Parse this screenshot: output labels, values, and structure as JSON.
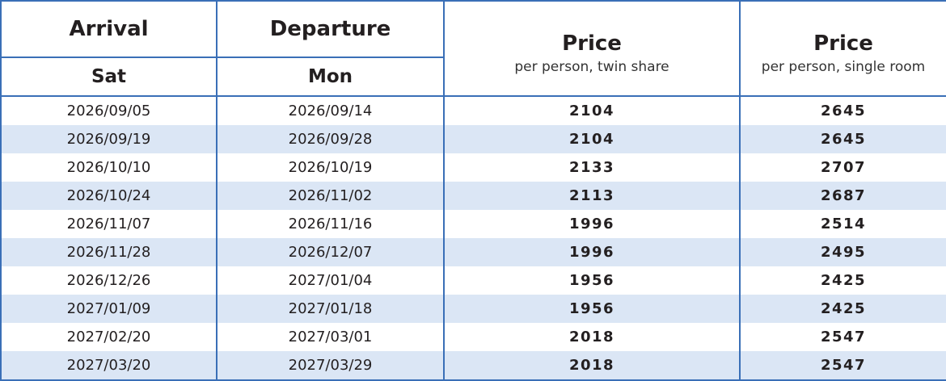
{
  "header": {
    "arrival": "Arrival",
    "departure": "Departure",
    "arrival_day": "Sat",
    "departure_day": "Mon",
    "price_twin": {
      "title": "Price",
      "note": "per person, twin share"
    },
    "price_single": {
      "title": "Price",
      "note": "per person, single room"
    }
  },
  "rows": [
    [
      "2026/09/05",
      "2026/09/14",
      2104,
      2645
    ],
    [
      "2026/09/19",
      "2026/09/28",
      2104,
      2645
    ],
    [
      "2026/10/10",
      "2026/10/19",
      2133,
      2707
    ],
    [
      "2026/10/24",
      "2026/11/02",
      2113,
      2687
    ],
    [
      "2026/11/07",
      "2026/11/16",
      1996,
      2514
    ],
    [
      "2026/11/28",
      "2026/12/07",
      1996,
      2495
    ],
    [
      "2026/12/26",
      "2027/01/04",
      1956,
      2425
    ],
    [
      "2027/01/09",
      "2027/01/18",
      1956,
      2425
    ],
    [
      "2027/02/20",
      "2027/03/01",
      2018,
      2547
    ],
    [
      "2027/03/20",
      "2027/03/29",
      2018,
      2547
    ]
  ]
}
